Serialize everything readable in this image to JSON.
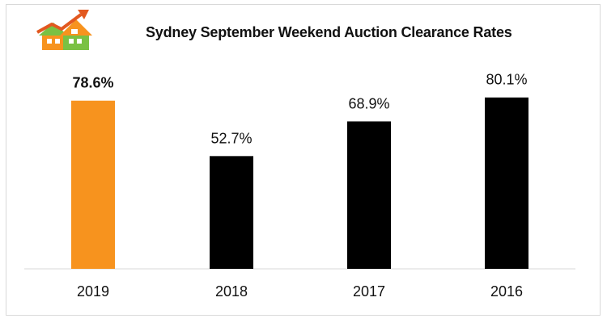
{
  "chart_data": {
    "type": "bar",
    "title": "Sydney September Weekend Auction Clearance Rates",
    "xlabel": "",
    "ylabel": "",
    "categories": [
      "2019",
      "2018",
      "2017",
      "2016"
    ],
    "values": [
      78.6,
      52.7,
      68.9,
      80.1
    ],
    "data_labels": [
      "78.6%",
      "52.7%",
      "68.9%",
      "80.1%"
    ],
    "unit": "%",
    "highlight_index": 0,
    "ylim": [
      0,
      100
    ],
    "grid": false,
    "legend": "none",
    "colors": {
      "highlight": "#f7931e",
      "default": "#000000",
      "axis": "#d9d9d9"
    }
  },
  "logo": {
    "icon": "house-growth-logo-icon"
  }
}
